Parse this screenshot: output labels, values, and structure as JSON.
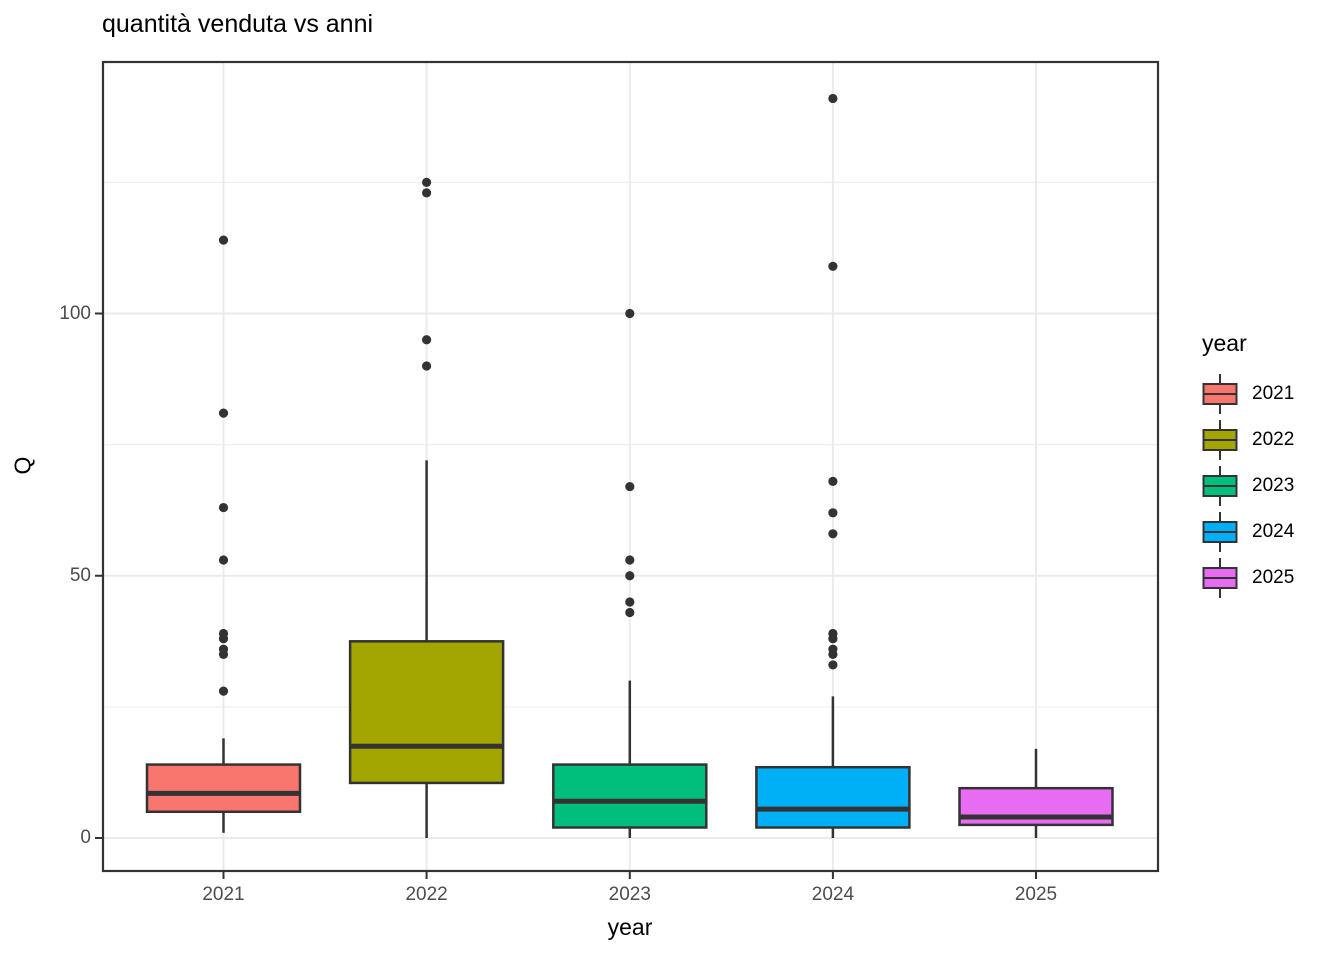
{
  "title": "quantità venduta vs anni",
  "axes": {
    "x": {
      "title": "year",
      "tick_labels": [
        "2021",
        "2022",
        "2023",
        "2024",
        "2025"
      ]
    },
    "y": {
      "title": "Q",
      "tick_labels": [
        "0",
        "50",
        "100"
      ]
    }
  },
  "legend": {
    "title": "year",
    "entries": [
      {
        "label": "2021",
        "color": "#F8766D"
      },
      {
        "label": "2022",
        "color": "#A3A500"
      },
      {
        "label": "2023",
        "color": "#00BF7D"
      },
      {
        "label": "2024",
        "color": "#00B0F6"
      },
      {
        "label": "2025",
        "color": "#E76BF3"
      }
    ]
  },
  "style": {
    "panel_border": "#333333",
    "gridline_major": "#EBEBEB",
    "gridline_minor": "#EFEFEF",
    "tick_label_color": "#4D4D4D",
    "box_stroke": "#333333",
    "outlier_color": "#333333"
  },
  "chart_data": {
    "type": "boxplot",
    "title": "quantità venduta vs anni",
    "xlabel": "year",
    "ylabel": "Q",
    "categories": [
      "2021",
      "2022",
      "2023",
      "2024",
      "2025"
    ],
    "y_major_ticks": [
      0,
      50,
      100
    ],
    "y_minor_gridlines": [
      25,
      75,
      125
    ],
    "ylim": [
      -6,
      148
    ],
    "grid": true,
    "legend_position": "right",
    "series": [
      {
        "name": "2021",
        "color": "#F8766D",
        "min": 1,
        "q1": 5,
        "median": 8.5,
        "q3": 14,
        "max": 19,
        "outliers": [
          28,
          35,
          36,
          38,
          39,
          53,
          63,
          81,
          114
        ]
      },
      {
        "name": "2022",
        "color": "#A3A500",
        "min": 0,
        "q1": 10.5,
        "median": 17.5,
        "q3": 37.5,
        "max": 72,
        "outliers": [
          90,
          95,
          123,
          125
        ]
      },
      {
        "name": "2023",
        "color": "#00BF7D",
        "min": 0,
        "q1": 2,
        "median": 7,
        "q3": 14,
        "max": 30,
        "outliers": [
          43,
          45,
          50,
          53,
          67,
          100
        ]
      },
      {
        "name": "2024",
        "color": "#00B0F6",
        "min": 0,
        "q1": 2,
        "median": 5.5,
        "q3": 13.5,
        "max": 27,
        "outliers": [
          33,
          35,
          36,
          38,
          39,
          58,
          62,
          68,
          109,
          141
        ]
      },
      {
        "name": "2025",
        "color": "#E76BF3",
        "min": 0,
        "q1": 2.5,
        "median": 4,
        "q3": 9.5,
        "max": 17,
        "outliers": []
      }
    ]
  }
}
